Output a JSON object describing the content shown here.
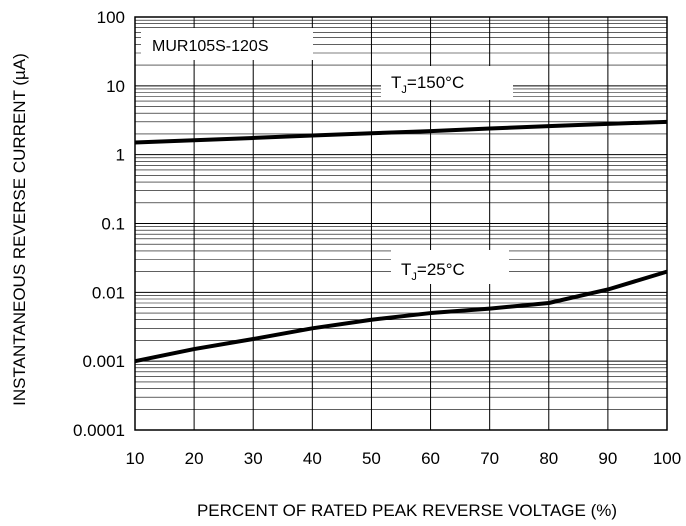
{
  "chart_data": {
    "type": "line",
    "title": "MUR105S-120S",
    "xlabel": "PERCENT OF RATED PEAK REVERSE VOLTAGE (%)",
    "ylabel": "INSTANTANEOUS REVERSE CURRENT (µA)",
    "x_scale": "linear",
    "y_scale": "log",
    "xlim": [
      10,
      100
    ],
    "ylim": [
      0.0001,
      100
    ],
    "x_ticks": [
      "10",
      "20",
      "30",
      "40",
      "50",
      "60",
      "70",
      "80",
      "90",
      "100"
    ],
    "y_ticks": [
      "0.0001",
      "0.001",
      "0.01",
      "0.1",
      "1",
      "10",
      "100"
    ],
    "grid": {
      "x_major": true,
      "y_major": true,
      "y_minor": true
    },
    "series": [
      {
        "name": "TJ=150°C",
        "label_main": "T",
        "label_sub": "J",
        "label_rest": "=150°C",
        "x": [
          10,
          20,
          30,
          40,
          50,
          60,
          70,
          80,
          90,
          100
        ],
        "y": [
          1.5,
          1.62,
          1.75,
          1.9,
          2.05,
          2.2,
          2.4,
          2.6,
          2.8,
          3.0
        ]
      },
      {
        "name": "TJ=25°C",
        "label_main": "T",
        "label_sub": "J",
        "label_rest": "=25°C",
        "x": [
          10,
          20,
          30,
          40,
          50,
          60,
          70,
          80,
          90,
          100
        ],
        "y": [
          0.001,
          0.0015,
          0.0021,
          0.003,
          0.004,
          0.005,
          0.0058,
          0.007,
          0.011,
          0.02
        ]
      }
    ]
  },
  "colors": {
    "line": "#000000",
    "grid": "#000000",
    "background": "#ffffff"
  }
}
